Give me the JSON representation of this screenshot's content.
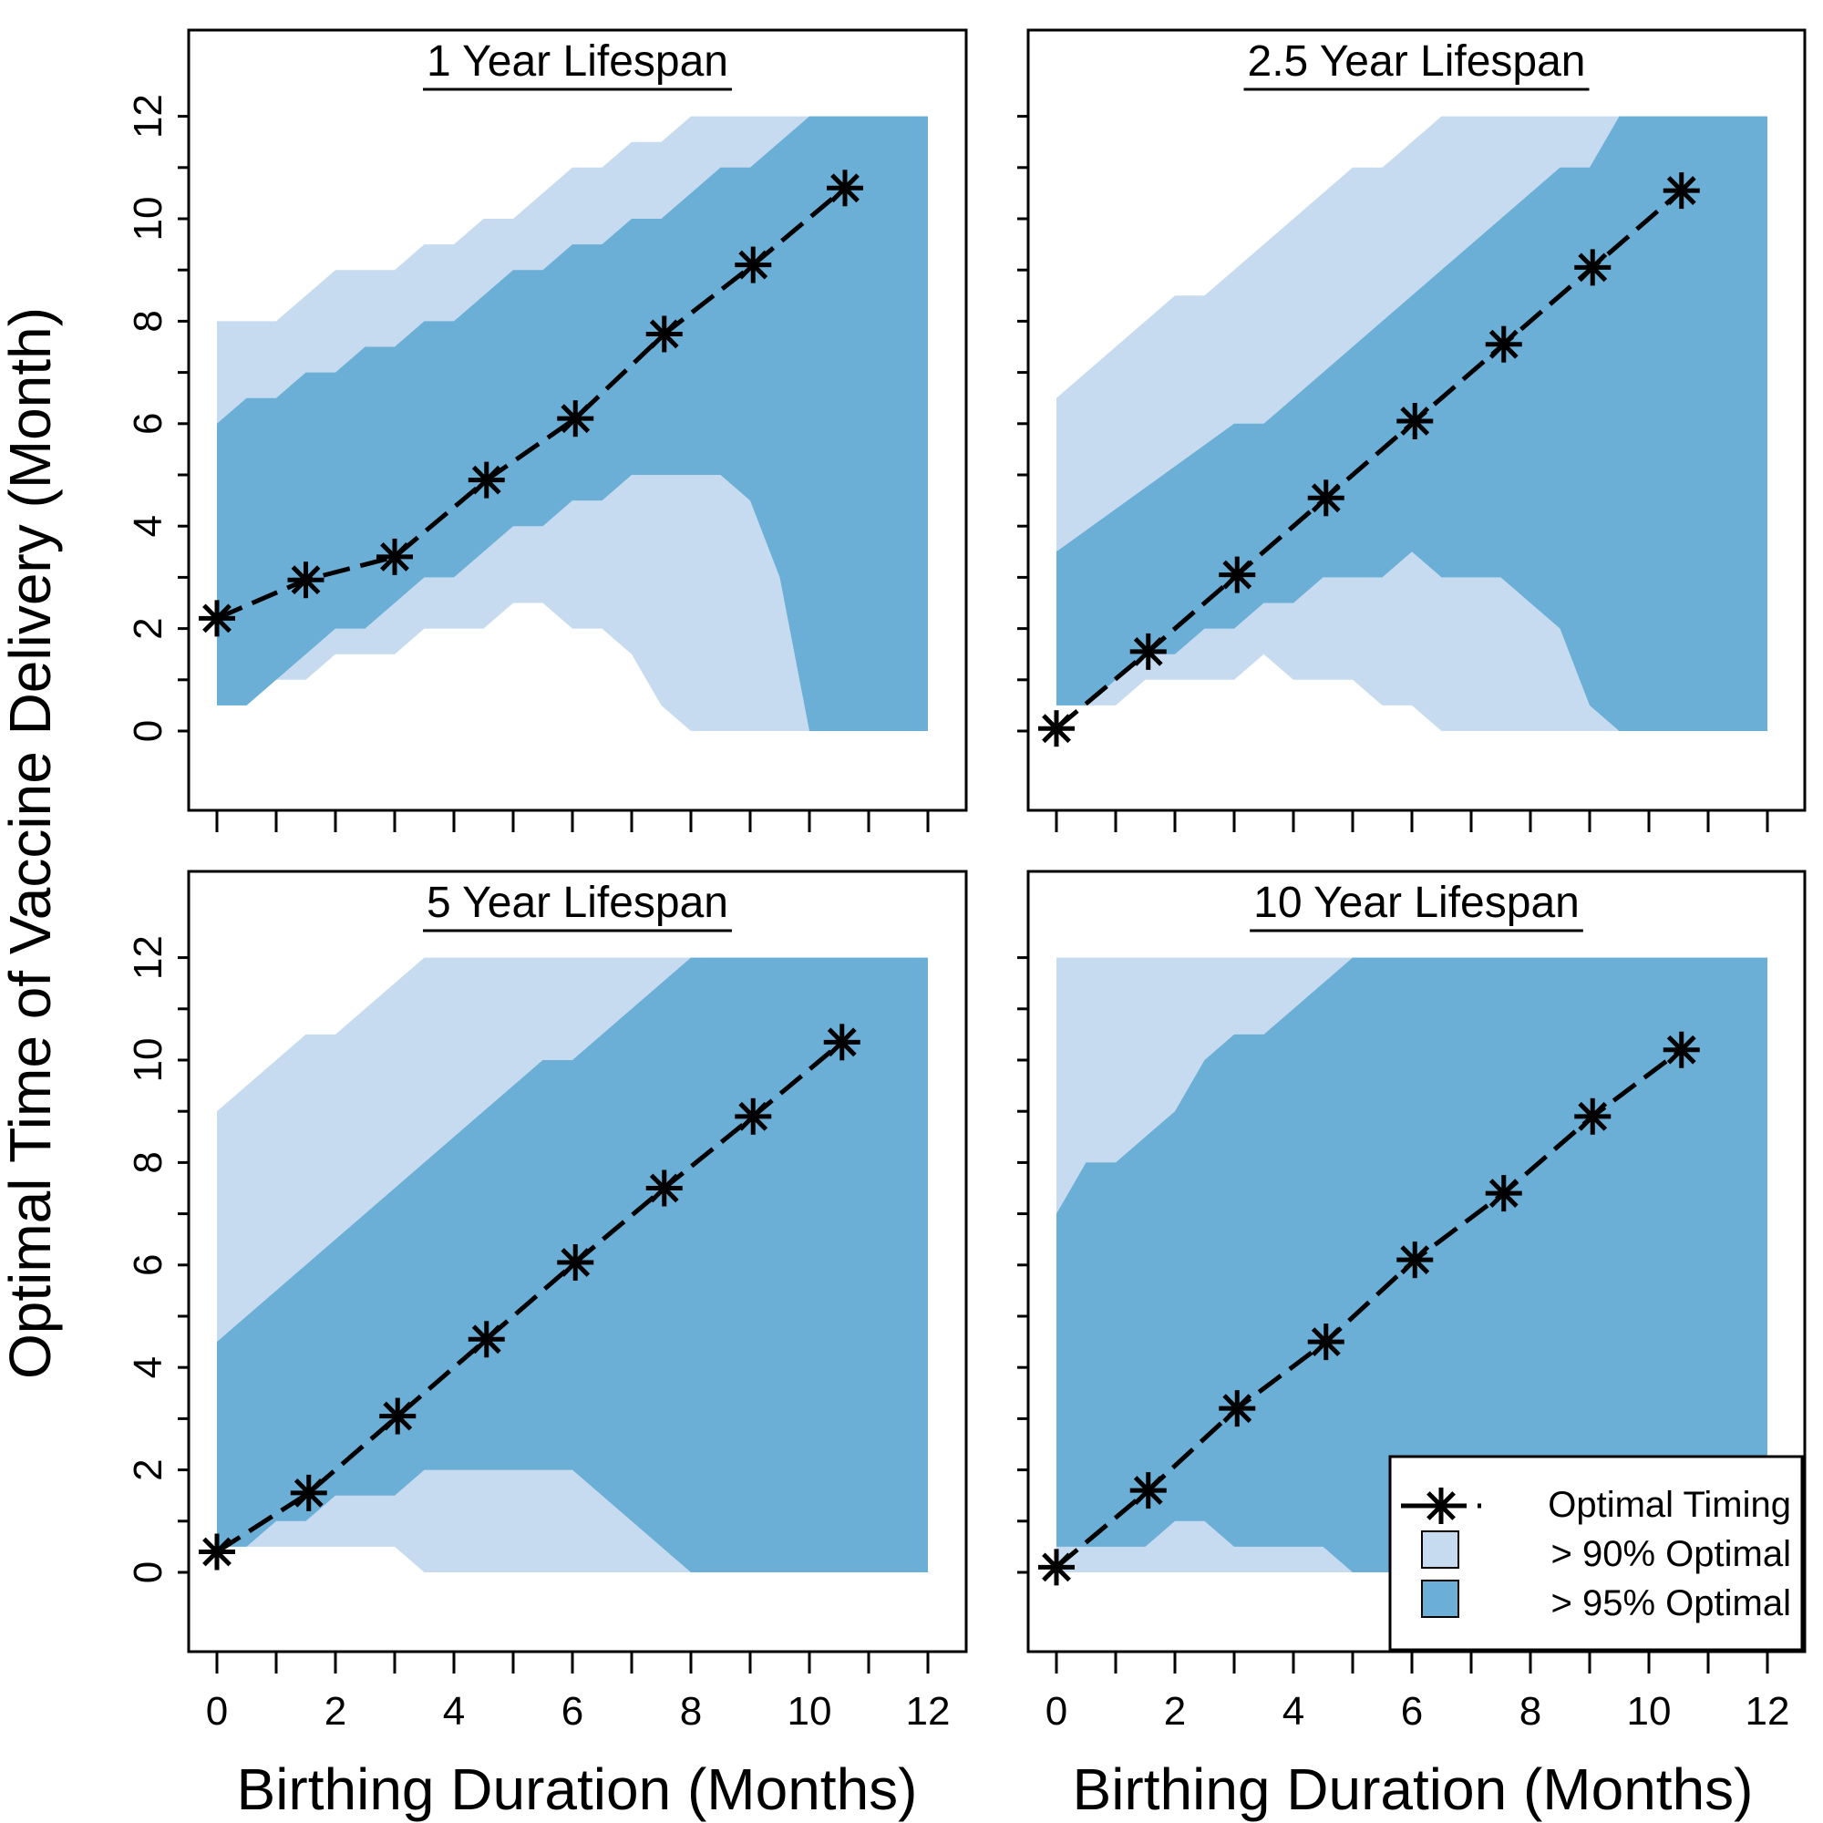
{
  "figure": {
    "xlabel": "Birthing Duration (Months)",
    "ylabel": "Optimal Time of Vaccine Delivery (Month)"
  },
  "colors": {
    "band90": "#c6dbef",
    "band95": "#6baed6",
    "line": "#000000"
  },
  "legend": {
    "placement": "bottom-right of panel 4",
    "entries": [
      "Optimal Timing",
      "> 90% Optimal",
      "> 95% Optimal"
    ]
  },
  "chart_data": [
    {
      "type": "area",
      "title": "1   Year Lifespan",
      "xlim": [
        0,
        12
      ],
      "ylim": [
        0,
        12
      ],
      "x_ticks": [
        0,
        2,
        4,
        6,
        8,
        10,
        12
      ],
      "y_ticks": [
        0,
        2,
        4,
        6,
        8,
        10,
        12
      ],
      "band90_upper": [
        [
          0,
          8
        ],
        [
          1,
          8
        ],
        [
          2,
          9
        ],
        [
          3,
          9
        ],
        [
          3.5,
          9.5
        ],
        [
          4,
          9.5
        ],
        [
          4.5,
          10
        ],
        [
          5,
          10
        ],
        [
          6,
          11
        ],
        [
          6.5,
          11
        ],
        [
          7,
          11.5
        ],
        [
          7.5,
          11.5
        ],
        [
          8,
          12
        ],
        [
          12,
          12
        ]
      ],
      "band95_upper": [
        [
          0,
          6
        ],
        [
          0.5,
          6.5
        ],
        [
          1,
          6.5
        ],
        [
          1.5,
          7
        ],
        [
          2,
          7
        ],
        [
          2.5,
          7.5
        ],
        [
          3,
          7.5
        ],
        [
          3.5,
          8
        ],
        [
          4,
          8
        ],
        [
          5,
          9
        ],
        [
          5.5,
          9
        ],
        [
          6,
          9.5
        ],
        [
          6.5,
          9.5
        ],
        [
          7,
          10
        ],
        [
          7.5,
          10
        ],
        [
          8.5,
          11
        ],
        [
          9,
          11
        ],
        [
          10,
          12
        ],
        [
          12,
          12
        ]
      ],
      "band95_lower": [
        [
          0,
          0.5
        ],
        [
          0.5,
          0.5
        ],
        [
          1,
          1
        ],
        [
          1.5,
          1.5
        ],
        [
          2,
          2
        ],
        [
          2.5,
          2
        ],
        [
          3,
          2.5
        ],
        [
          3.5,
          3
        ],
        [
          4,
          3
        ],
        [
          5,
          4
        ],
        [
          5.5,
          4
        ],
        [
          6,
          4.5
        ],
        [
          6.5,
          4.5
        ],
        [
          7,
          5
        ],
        [
          8.5,
          5
        ],
        [
          9,
          4.5
        ],
        [
          9.5,
          3
        ],
        [
          10,
          0
        ],
        [
          12,
          0
        ]
      ],
      "band90_lower": [
        [
          0,
          0.5
        ],
        [
          0.5,
          0.5
        ],
        [
          1,
          1
        ],
        [
          1.5,
          1
        ],
        [
          2,
          1.5
        ],
        [
          3,
          1.5
        ],
        [
          3.5,
          2
        ],
        [
          4.5,
          2
        ],
        [
          5,
          2.5
        ],
        [
          5.5,
          2.5
        ],
        [
          6,
          2
        ],
        [
          6.5,
          2
        ],
        [
          7,
          1.5
        ],
        [
          7.5,
          0.5
        ],
        [
          8,
          0
        ],
        [
          12,
          0
        ]
      ],
      "optimal": [
        [
          0,
          2.2
        ],
        [
          1.5,
          2.95
        ],
        [
          3,
          3.4
        ],
        [
          4.55,
          4.9
        ],
        [
          6.05,
          6.1
        ],
        [
          7.55,
          7.75
        ],
        [
          9.05,
          9.1
        ],
        [
          10.6,
          10.6
        ]
      ]
    },
    {
      "type": "area",
      "title": "2.5   Year Lifespan",
      "xlim": [
        0,
        12
      ],
      "ylim": [
        0,
        12
      ],
      "x_ticks": [
        0,
        2,
        4,
        6,
        8,
        10,
        12
      ],
      "y_ticks": [
        0,
        2,
        4,
        6,
        8,
        10,
        12
      ],
      "band90_upper": [
        [
          0,
          6.5
        ],
        [
          2,
          8.5
        ],
        [
          2.5,
          8.5
        ],
        [
          5,
          11
        ],
        [
          5.5,
          11
        ],
        [
          6.5,
          12
        ],
        [
          12,
          12
        ]
      ],
      "band95_upper": [
        [
          0,
          3.5
        ],
        [
          3,
          6
        ],
        [
          3.5,
          6
        ],
        [
          8,
          10.5
        ],
        [
          8.5,
          11
        ],
        [
          9,
          11
        ],
        [
          9.5,
          12
        ],
        [
          12,
          12
        ]
      ],
      "band95_lower": [
        [
          0,
          0.5
        ],
        [
          0.5,
          0.5
        ],
        [
          1,
          1
        ],
        [
          1.5,
          1.5
        ],
        [
          2,
          1.5
        ],
        [
          2.5,
          2
        ],
        [
          3,
          2
        ],
        [
          3.5,
          2.5
        ],
        [
          4,
          2.5
        ],
        [
          4.5,
          3
        ],
        [
          5.5,
          3
        ],
        [
          6,
          3.5
        ],
        [
          6.5,
          3
        ],
        [
          7.5,
          3
        ],
        [
          8.5,
          2
        ],
        [
          9,
          0.5
        ],
        [
          9.5,
          0
        ],
        [
          12,
          0
        ]
      ],
      "band90_lower": [
        [
          0,
          0.5
        ],
        [
          0.5,
          0.5
        ],
        [
          1,
          0.5
        ],
        [
          1.5,
          1
        ],
        [
          3,
          1
        ],
        [
          3.5,
          1.5
        ],
        [
          4,
          1
        ],
        [
          5,
          1
        ],
        [
          5.5,
          0.5
        ],
        [
          6,
          0.5
        ],
        [
          6.5,
          0
        ],
        [
          12,
          0
        ]
      ],
      "optimal": [
        [
          0,
          0.05
        ],
        [
          1.55,
          1.55
        ],
        [
          3.05,
          3.05
        ],
        [
          4.55,
          4.55
        ],
        [
          6.05,
          6.05
        ],
        [
          7.55,
          7.55
        ],
        [
          9.05,
          9.05
        ],
        [
          10.55,
          10.55
        ]
      ]
    },
    {
      "type": "area",
      "title": "5   Year Lifespan",
      "xlim": [
        0,
        12
      ],
      "ylim": [
        0,
        12
      ],
      "x_ticks": [
        0,
        2,
        4,
        6,
        8,
        10,
        12
      ],
      "y_ticks": [
        0,
        2,
        4,
        6,
        8,
        10,
        12
      ],
      "band90_upper": [
        [
          0,
          9
        ],
        [
          1.5,
          10.5
        ],
        [
          2,
          10.5
        ],
        [
          3.5,
          12
        ],
        [
          12,
          12
        ]
      ],
      "band95_upper": [
        [
          0,
          4.5
        ],
        [
          5.5,
          10
        ],
        [
          6,
          10
        ],
        [
          8,
          12
        ],
        [
          12,
          12
        ]
      ],
      "band95_lower": [
        [
          0,
          0.5
        ],
        [
          0.5,
          0.5
        ],
        [
          1,
          1
        ],
        [
          1.5,
          1
        ],
        [
          2,
          1.5
        ],
        [
          3,
          1.5
        ],
        [
          3.5,
          2
        ],
        [
          6,
          2
        ],
        [
          8,
          0
        ],
        [
          12,
          0
        ]
      ],
      "band90_lower": [
        [
          0,
          0.5
        ],
        [
          3,
          0.5
        ],
        [
          3.5,
          0
        ],
        [
          12,
          0
        ]
      ],
      "optimal": [
        [
          0,
          0.4
        ],
        [
          1.55,
          1.55
        ],
        [
          3.05,
          3.05
        ],
        [
          4.55,
          4.55
        ],
        [
          6.05,
          6.05
        ],
        [
          7.55,
          7.5
        ],
        [
          9.05,
          8.9
        ],
        [
          10.55,
          10.35
        ]
      ]
    },
    {
      "type": "area",
      "title": "10   Year Lifespan",
      "xlim": [
        0,
        12
      ],
      "ylim": [
        0,
        12
      ],
      "x_ticks": [
        0,
        2,
        4,
        6,
        8,
        10,
        12
      ],
      "y_ticks": [
        0,
        2,
        4,
        6,
        8,
        10,
        12
      ],
      "band90_upper": [
        [
          0,
          12
        ],
        [
          12,
          12
        ]
      ],
      "band95_upper": [
        [
          0,
          7
        ],
        [
          0.5,
          8
        ],
        [
          1,
          8
        ],
        [
          2,
          9
        ],
        [
          2.5,
          10
        ],
        [
          3,
          10.5
        ],
        [
          3.5,
          10.5
        ],
        [
          5,
          12
        ],
        [
          12,
          12
        ]
      ],
      "band95_lower": [
        [
          0,
          0.5
        ],
        [
          1.5,
          0.5
        ],
        [
          2,
          1
        ],
        [
          2.5,
          1
        ],
        [
          3,
          0.5
        ],
        [
          4.5,
          0.5
        ],
        [
          5,
          0
        ],
        [
          12,
          0
        ]
      ],
      "band90_lower": [
        [
          0,
          0
        ],
        [
          12,
          0
        ]
      ],
      "optimal": [
        [
          0,
          0.1
        ],
        [
          1.55,
          1.6
        ],
        [
          3.05,
          3.2
        ],
        [
          4.55,
          4.5
        ],
        [
          6.05,
          6.1
        ],
        [
          7.55,
          7.4
        ],
        [
          9.05,
          8.9
        ],
        [
          10.55,
          10.2
        ]
      ]
    }
  ]
}
